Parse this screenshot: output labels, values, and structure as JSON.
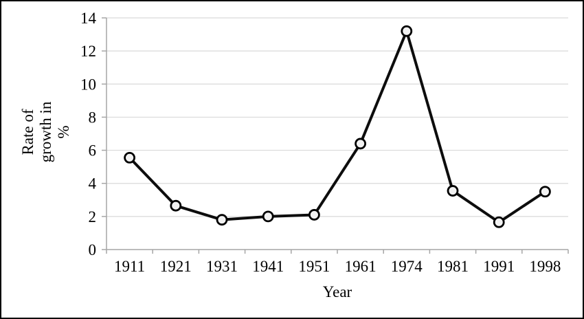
{
  "figure": {
    "background": "#ffffff",
    "border_color": "#000000"
  },
  "chart_data": {
    "type": "line",
    "title": "",
    "categories": [
      "1911",
      "1921",
      "1931",
      "1941",
      "1951",
      "1961",
      "1974",
      "1981",
      "1991",
      "1998"
    ],
    "values": [
      5.55,
      2.65,
      1.8,
      2.0,
      2.1,
      6.4,
      13.2,
      3.55,
      1.65,
      3.5
    ],
    "xlabel": "Year",
    "ylabel": "Rate of growth in %",
    "ylabel_lines": [
      "Rate of",
      "growth in",
      "%"
    ],
    "ylim": [
      0,
      14
    ],
    "yticks": [
      0,
      2,
      4,
      6,
      8,
      10,
      12,
      14
    ],
    "grid": "horizontal",
    "legend": "none",
    "marker": "circle",
    "colors": {
      "line": "#0d0d0d",
      "marker_fill": "#f2f2f2",
      "marker_stroke": "#000000",
      "gridline": "#d9d9d9",
      "axis": "#a6a6a6",
      "text": "#000000"
    }
  }
}
